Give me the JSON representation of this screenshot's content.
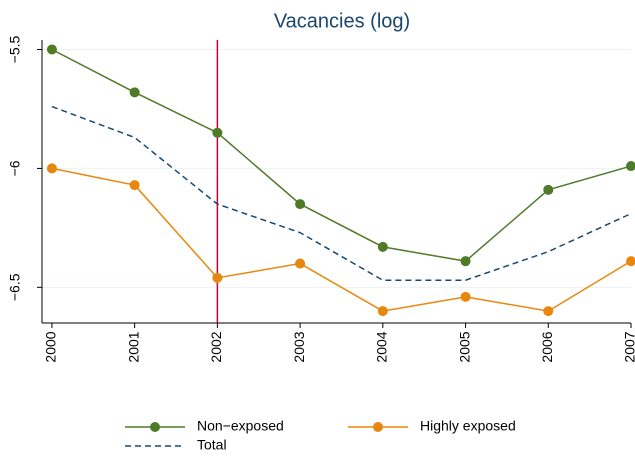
{
  "chart_data": {
    "type": "line",
    "title": "Vacancies (log)",
    "x": [
      2000,
      2001,
      2002,
      2003,
      2004,
      2005,
      2006,
      2007
    ],
    "xlim": [
      1999.88,
      2007
    ],
    "xticks": [
      2000,
      2001,
      2002,
      2003,
      2004,
      2005,
      2006,
      2007
    ],
    "ylim": [
      -6.65,
      -5.46
    ],
    "yticks": [
      {
        "value": -5.5,
        "label": "−5.5"
      },
      {
        "value": -6,
        "label": "−6"
      },
      {
        "value": -6.5,
        "label": "−6.5"
      }
    ],
    "grid": true,
    "vline": 2002,
    "vline_color": "#c10534",
    "series": [
      {
        "name": "Non−exposed",
        "color": "#4f7a28",
        "marker": true,
        "dash": false,
        "values": [
          -5.5,
          -5.68,
          -5.85,
          -6.15,
          -6.33,
          -6.39,
          -6.09,
          -5.99
        ]
      },
      {
        "name": "Highly exposed",
        "color": "#e8870e",
        "marker": true,
        "dash": false,
        "values": [
          -6.0,
          -6.07,
          -6.46,
          -6.4,
          -6.6,
          -6.54,
          -6.6,
          -6.39
        ]
      },
      {
        "name": "Total",
        "color": "#1a476f",
        "marker": false,
        "dash": true,
        "values": [
          -5.74,
          -5.87,
          -6.15,
          -6.27,
          -6.47,
          -6.47,
          -6.35,
          -6.19
        ]
      }
    ]
  }
}
